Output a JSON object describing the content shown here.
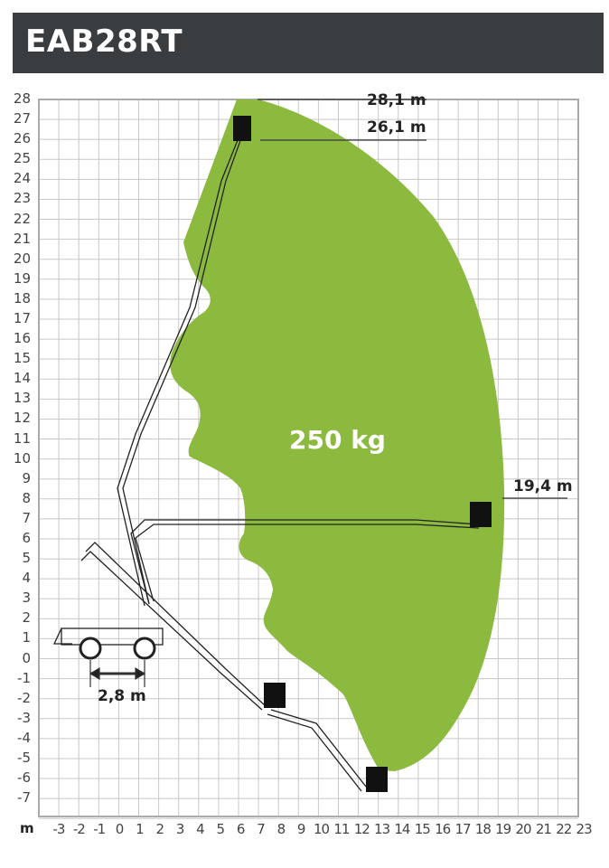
{
  "header": {
    "title": "EAB28RT"
  },
  "axes": {
    "unit": "m",
    "y_ticks": [
      "28",
      "27",
      "26",
      "25",
      "24",
      "23",
      "22",
      "21",
      "20",
      "19",
      "18",
      "17",
      "16",
      "15",
      "14",
      "13",
      "12",
      "11",
      "10",
      "9",
      "8",
      "7",
      "6",
      "5",
      "4",
      "3",
      "2",
      "1",
      "0",
      "-1",
      "-2",
      "-3",
      "-4",
      "-5",
      "-6",
      "-7"
    ],
    "x_ticks": [
      "-3",
      "-2",
      "-1",
      "0",
      "1",
      "2",
      "3",
      "4",
      "5",
      "6",
      "7",
      "8",
      "9",
      "10",
      "11",
      "12",
      "13",
      "14",
      "15",
      "16",
      "17",
      "18",
      "19",
      "20",
      "21",
      "22",
      "23"
    ]
  },
  "dimensions": {
    "max_platform_height": "28,1 m",
    "max_working_height": "26,1 m",
    "max_outreach": "19,4 m",
    "track_width": "2,8 m"
  },
  "envelope": {
    "capacity": "250 kg",
    "color": "#8cba3f"
  },
  "colors": {
    "header_bg": "#3a3d3f",
    "grid": "#c8c8c8"
  }
}
